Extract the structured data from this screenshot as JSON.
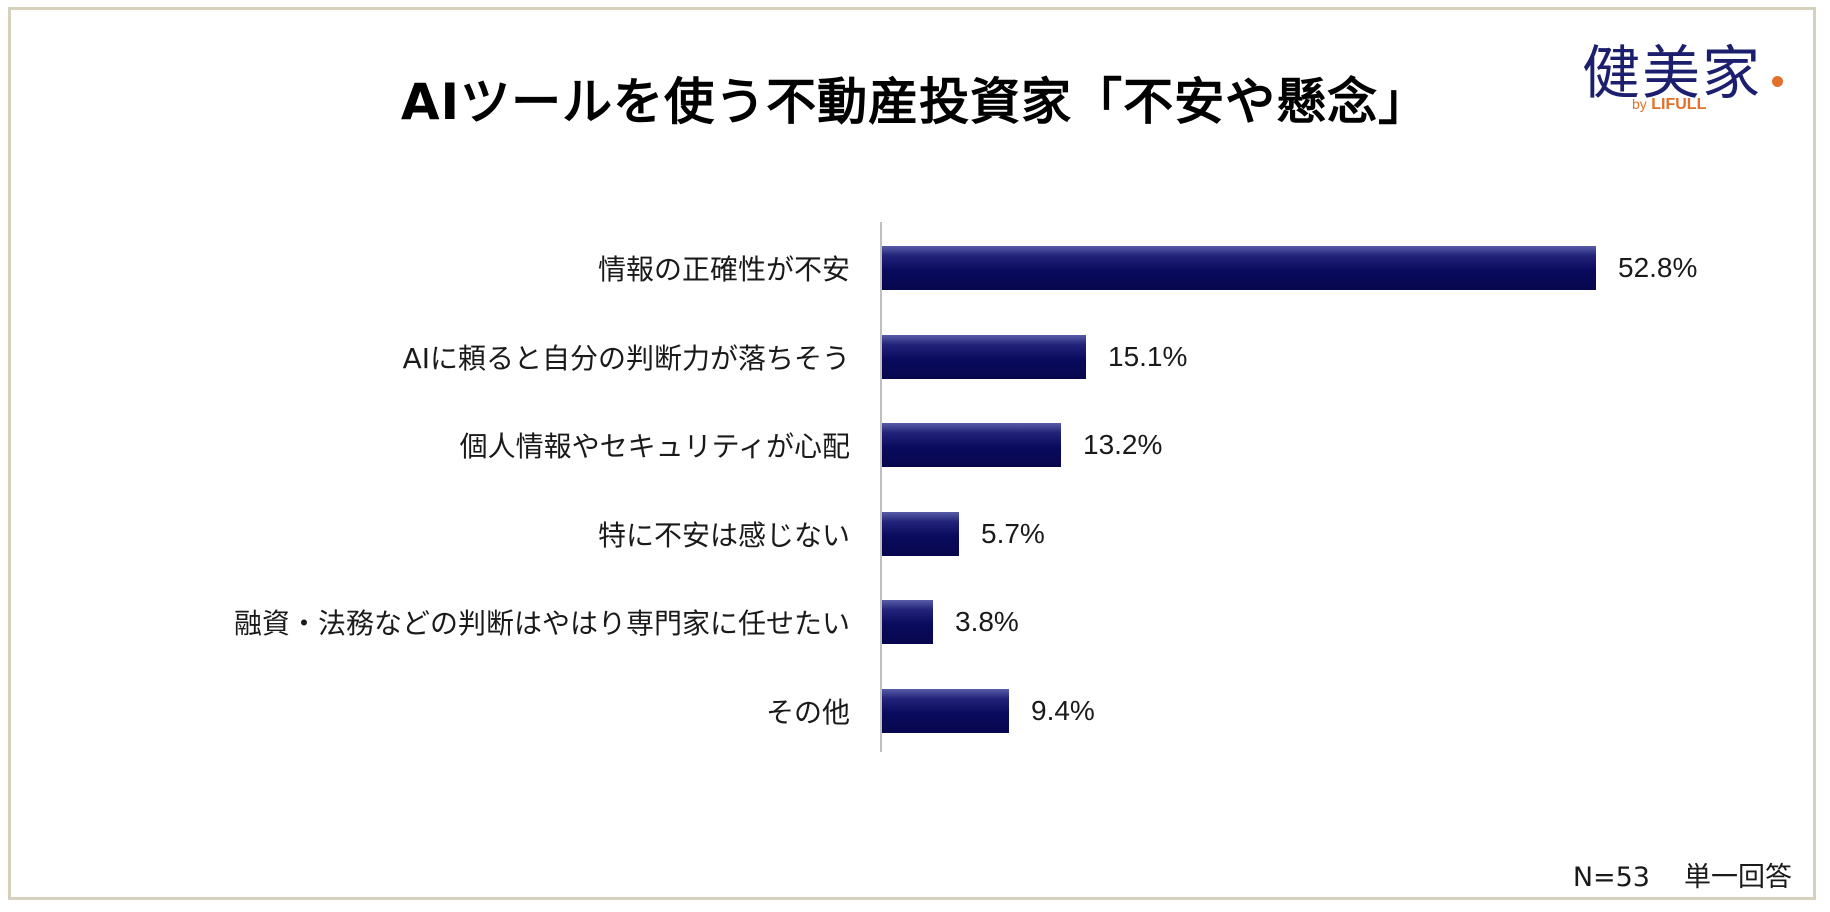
{
  "title": "AIツールを使う不動産投資家「不安や懸念」",
  "logo": {
    "main": "健美家",
    "by": "by",
    "brand": "LIFULL",
    "accent_color": "#e3702a",
    "main_color": "#1b1f6e"
  },
  "chart_data": {
    "type": "bar",
    "orientation": "horizontal",
    "categories": [
      "情報の正確性が不安",
      "AIに頼ると自分の判断力が落ちそう",
      "個人情報やセキュリティが心配",
      "特に不安は感じない",
      "融資・法務などの判断はやはり専門家に任せたい",
      "その他"
    ],
    "values": [
      52.8,
      15.1,
      13.2,
      5.7,
      3.8,
      9.4
    ],
    "value_labels": [
      "52.8%",
      "15.1%",
      "13.2%",
      "5.7%",
      "3.8%",
      "9.4%"
    ],
    "unit": "%",
    "xlim": [
      0,
      60
    ],
    "bar_color": "#0a0a5e",
    "grid": false,
    "legend": "none"
  },
  "footnote": {
    "n": "N=53",
    "type": "単一回答"
  }
}
